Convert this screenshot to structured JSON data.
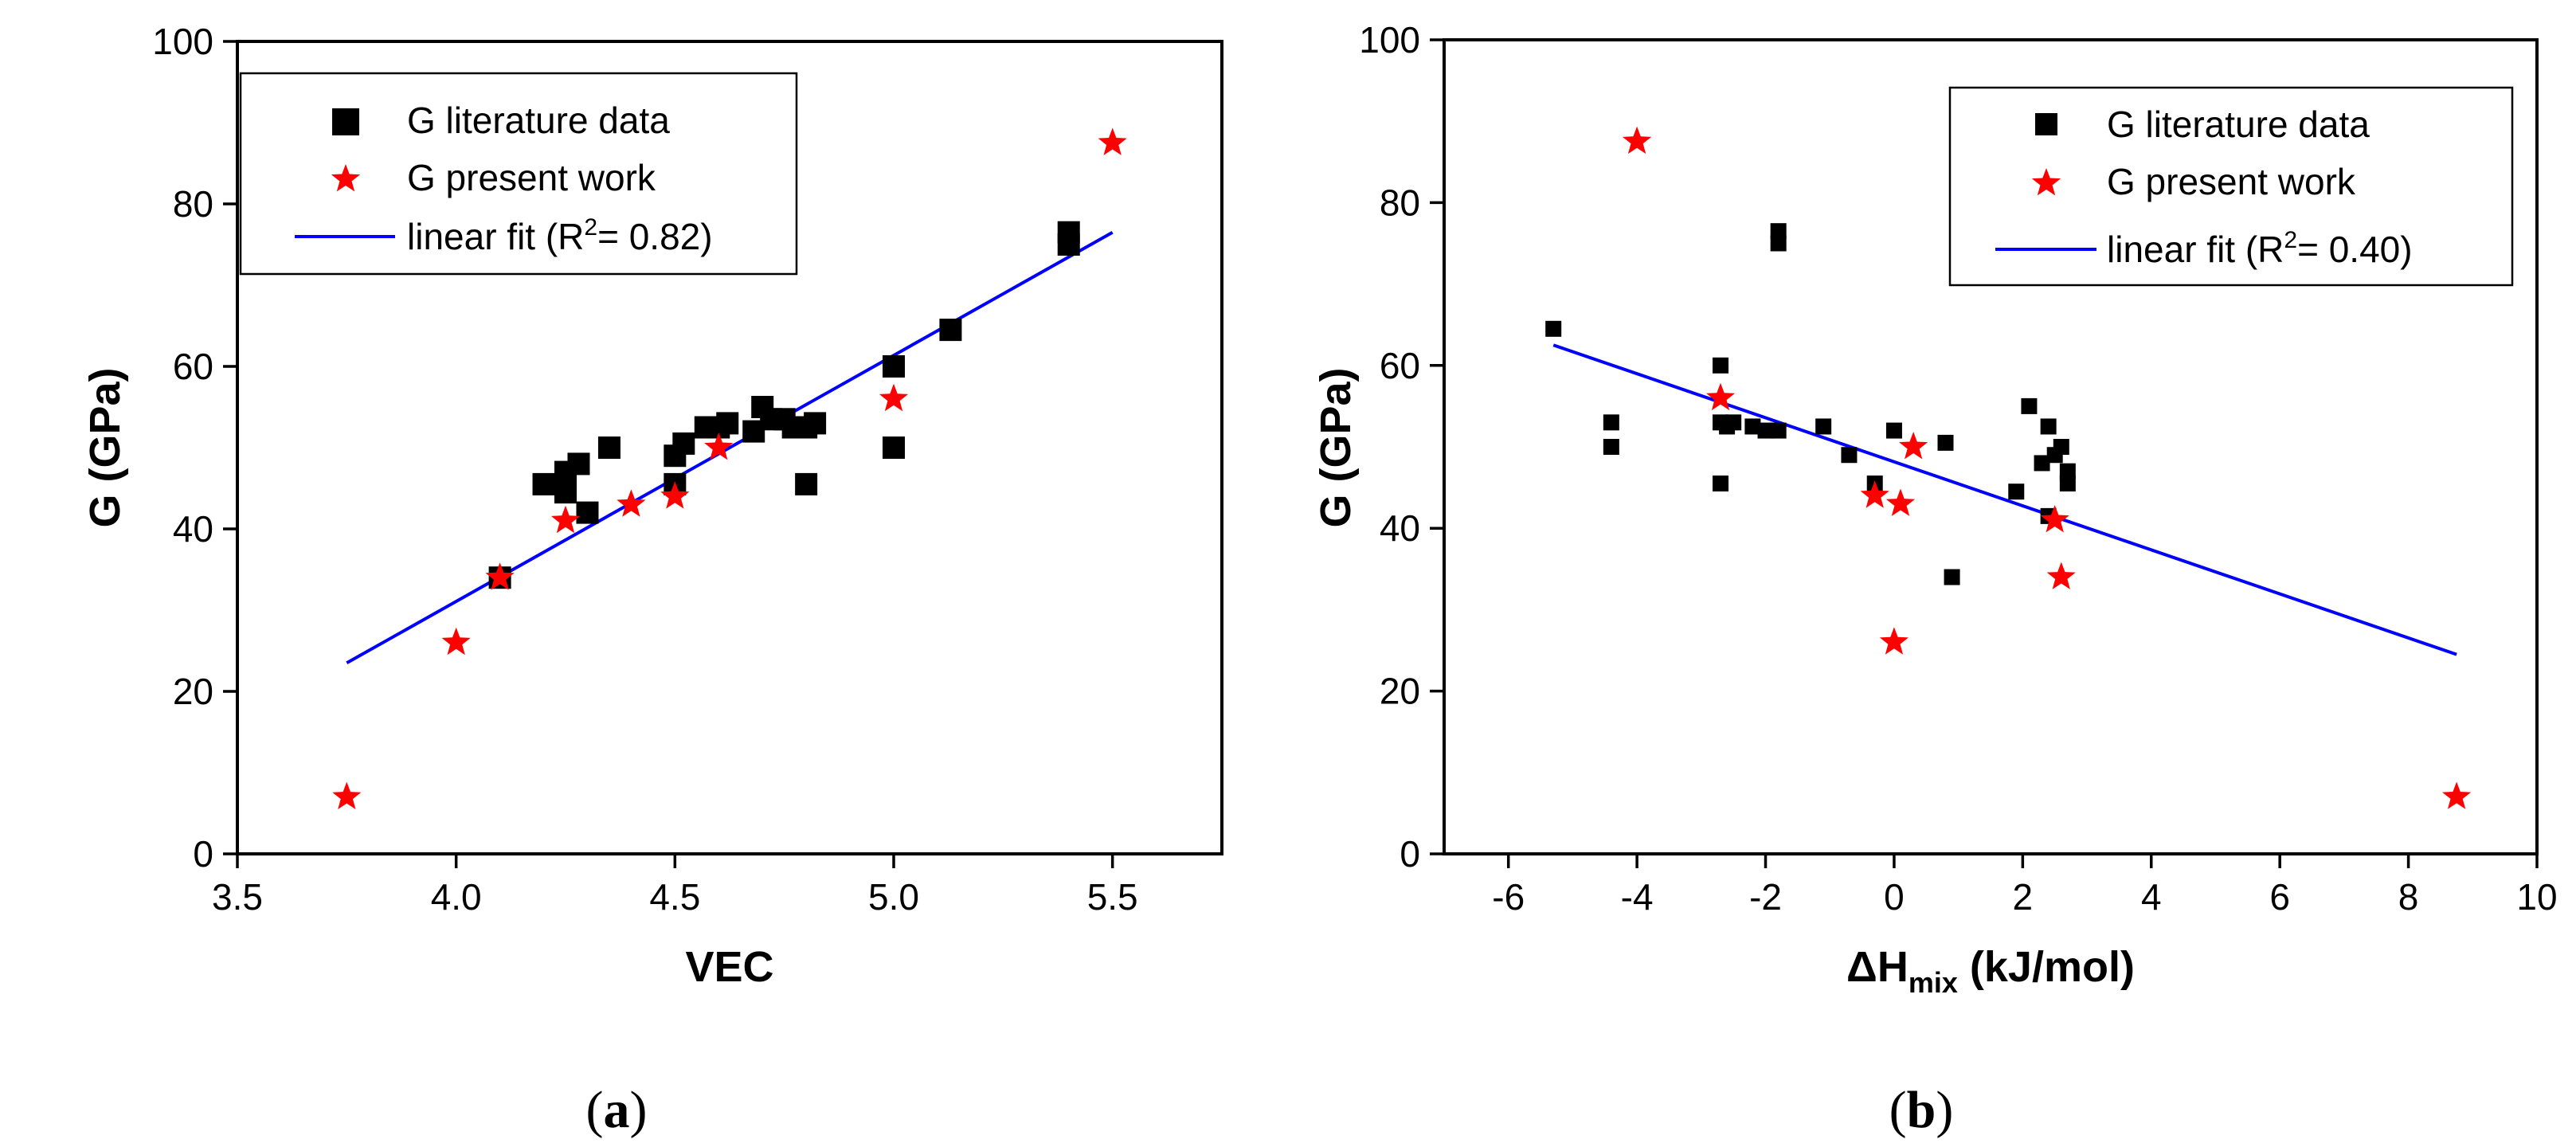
{
  "chart_data": [
    {
      "type": "scatter",
      "panel_label": "a",
      "xlabel": "VEC",
      "ylabel": "G (GPa)",
      "xlim": [
        3.5,
        5.75
      ],
      "ylim": [
        0,
        100
      ],
      "xticks": [
        "3.5",
        "4.0",
        "4.5",
        "5.0",
        "5.5"
      ],
      "yticks": [
        "0",
        "20",
        "40",
        "60",
        "80",
        "100"
      ],
      "legend_position": "top-left",
      "legend": {
        "lit": "G literature data",
        "present": "G present work",
        "fit_prefix": "linear fit (R",
        "fit_sup": "2",
        "fit_suffix": "= 0.82)"
      },
      "series": [
        {
          "name": "G literature data",
          "marker": "square",
          "color": "#000000",
          "points": [
            [
              4.1,
              34
            ],
            [
              4.2,
              45.5
            ],
            [
              4.25,
              47
            ],
            [
              4.25,
              44.5
            ],
            [
              4.28,
              48
            ],
            [
              4.3,
              42
            ],
            [
              4.35,
              50
            ],
            [
              4.5,
              45.5
            ],
            [
              4.5,
              49
            ],
            [
              4.52,
              50.5
            ],
            [
              4.57,
              52.5
            ],
            [
              4.6,
              52.5
            ],
            [
              4.62,
              53
            ],
            [
              4.68,
              52
            ],
            [
              4.7,
              55
            ],
            [
              4.72,
              53.5
            ],
            [
              4.75,
              53.5
            ],
            [
              4.77,
              52.5
            ],
            [
              4.8,
              52.5
            ],
            [
              4.8,
              45.5
            ],
            [
              4.82,
              53
            ],
            [
              5.0,
              60
            ],
            [
              5.0,
              50
            ],
            [
              5.13,
              64.5
            ],
            [
              5.4,
              75
            ],
            [
              5.4,
              76.5
            ]
          ]
        },
        {
          "name": "G present work",
          "marker": "star",
          "color": "#ff0000",
          "points": [
            [
              3.75,
              7
            ],
            [
              4.0,
              26
            ],
            [
              4.1,
              34
            ],
            [
              4.25,
              41
            ],
            [
              4.4,
              43
            ],
            [
              4.5,
              44
            ],
            [
              4.6,
              50
            ],
            [
              5.0,
              56
            ],
            [
              5.5,
              87.5
            ]
          ]
        },
        {
          "name": "linear fit (R2= 0.82)",
          "type": "line",
          "color": "#0000ff",
          "points": [
            [
              3.75,
              23.5
            ],
            [
              5.5,
              76.5
            ]
          ]
        }
      ]
    },
    {
      "type": "scatter",
      "panel_label": "b",
      "xlabel_main": "ΔH",
      "xlabel_sub": "mix",
      "xlabel_rest": " (kJ/mol)",
      "ylabel": "G (GPa)",
      "xlim": [
        -7,
        10
      ],
      "ylim": [
        0,
        100
      ],
      "xticks": [
        "-6",
        "-4",
        "-2",
        "0",
        "2",
        "4",
        "6",
        "8",
        "10"
      ],
      "yticks": [
        "0",
        "20",
        "40",
        "60",
        "80",
        "100"
      ],
      "legend_position": "top-right",
      "legend": {
        "lit": "G literature data",
        "present": "G present work",
        "fit_prefix": "linear fit (R",
        "fit_sup": "2",
        "fit_suffix": "= 0.40)"
      },
      "series": [
        {
          "name": "G literature data",
          "marker": "square",
          "color": "#000000",
          "points": [
            [
              -5.3,
              64.5
            ],
            [
              -4.4,
              53
            ],
            [
              -4.4,
              50
            ],
            [
              -2.7,
              60
            ],
            [
              -2.7,
              53
            ],
            [
              -2.6,
              52.5
            ],
            [
              -2.5,
              53
            ],
            [
              -2.7,
              45.5
            ],
            [
              -2.2,
              52.5
            ],
            [
              -2.0,
              52
            ],
            [
              -1.8,
              52
            ],
            [
              -1.8,
              75
            ],
            [
              -1.8,
              76.5
            ],
            [
              -1.1,
              52.5
            ],
            [
              -0.7,
              49
            ],
            [
              -0.3,
              45.5
            ],
            [
              0.0,
              52
            ],
            [
              0.8,
              50.5
            ],
            [
              0.9,
              34
            ],
            [
              1.9,
              44.5
            ],
            [
              2.1,
              55
            ],
            [
              2.3,
              48
            ],
            [
              2.4,
              52.5
            ],
            [
              2.5,
              49
            ],
            [
              2.6,
              50
            ],
            [
              2.7,
              47
            ],
            [
              2.7,
              45.5
            ],
            [
              2.4,
              41.5
            ]
          ]
        },
        {
          "name": "G present work",
          "marker": "star",
          "color": "#ff0000",
          "points": [
            [
              -4.0,
              87.5
            ],
            [
              -2.7,
              56
            ],
            [
              -0.3,
              44
            ],
            [
              0.1,
              43
            ],
            [
              0.3,
              50
            ],
            [
              0.0,
              26
            ],
            [
              2.5,
              41
            ],
            [
              2.6,
              34
            ],
            [
              8.75,
              7
            ]
          ]
        },
        {
          "name": "linear fit (R2= 0.40)",
          "type": "line",
          "color": "#0000ff",
          "points": [
            [
              -5.3,
              62.5
            ],
            [
              8.75,
              24.5
            ]
          ]
        }
      ]
    }
  ]
}
